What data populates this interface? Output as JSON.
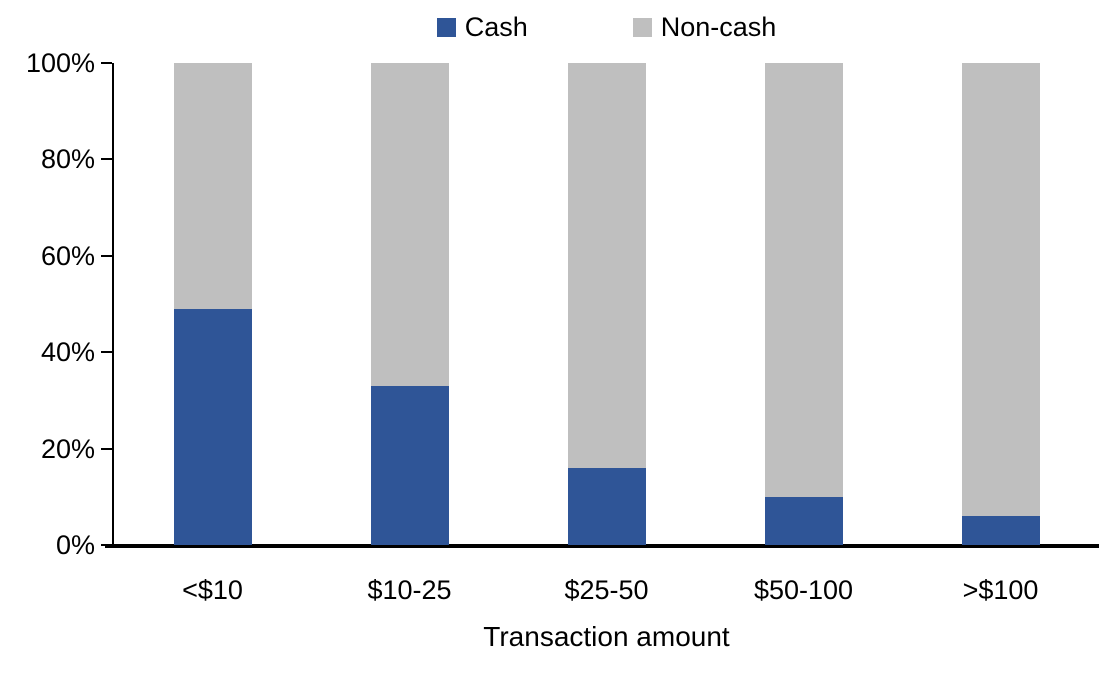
{
  "chart_data": {
    "type": "bar",
    "stacked": true,
    "percent_stacked": true,
    "title": "",
    "xlabel": "Transaction amount",
    "ylabel": "",
    "categories": [
      "<$10",
      "$10-25",
      "$25-50",
      "$50-100",
      ">$100"
    ],
    "series": [
      {
        "name": "Cash",
        "color": "#2F5597",
        "values": [
          49,
          33,
          16,
          10,
          6
        ]
      },
      {
        "name": "Non-cash",
        "color": "#BFBFBF",
        "values": [
          51,
          67,
          84,
          90,
          94
        ]
      }
    ],
    "ylim": [
      0,
      100
    ],
    "yticks": [
      0,
      20,
      40,
      60,
      80,
      100
    ],
    "ytick_labels": [
      "0%",
      "20%",
      "40%",
      "60%",
      "80%",
      "100%"
    ],
    "legend_position": "top",
    "grid": false,
    "axis_color": "#000000",
    "text_color": "#000000",
    "background_color": "#FFFFFF"
  }
}
